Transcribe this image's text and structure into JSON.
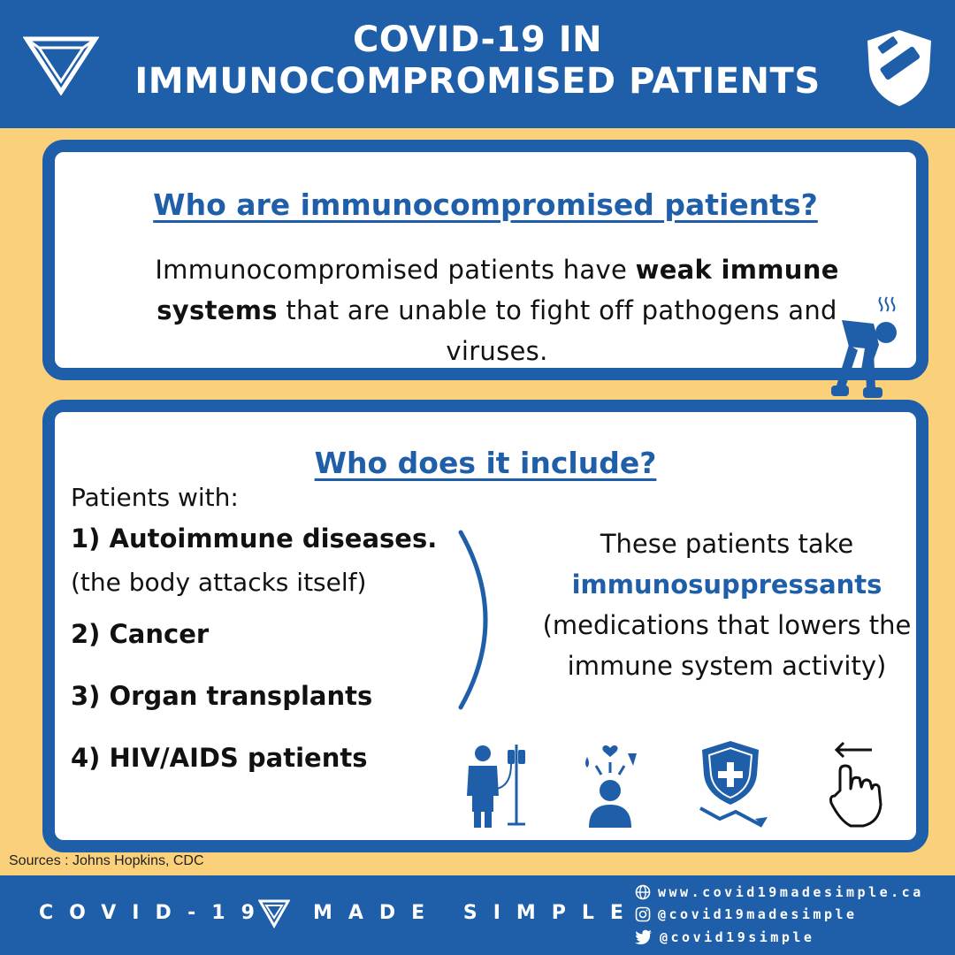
{
  "header": {
    "title_line1": "COVID-19 IN",
    "title_line2": "IMMUNOCOMPROMISED PATIENTS",
    "logo_left_icon": "triangle-logo-icon",
    "logo_right_icon": "shield-logo-icon"
  },
  "card1": {
    "heading": "Who are immunocompromised patients?",
    "body_part1": "Immunocompromised patients have ",
    "body_bold": "weak immune systems",
    "body_part2": " that are unable to fight off pathogens and viruses.",
    "illustration": "sick-person-icon"
  },
  "card2": {
    "heading": "Who does it include?",
    "intro": "Patients with:",
    "conditions": [
      {
        "label": "1) Autoimmune diseases.",
        "note": "(the body attacks itself)"
      },
      {
        "label": "2) Cancer"
      },
      {
        "label": "3) Organ transplants"
      },
      {
        "label": "4) HIV/AIDS patients"
      }
    ],
    "right_line1": "These patients take",
    "right_highlight": "immunosuppressants",
    "right_line2": "(medications that lowers the immune system activity)",
    "icons": [
      "patient-iv-icon",
      "mental-stress-icon",
      "shield-down-icon",
      "swipe-left-icon"
    ]
  },
  "sources": "Sources : Johns Hopkins, CDC",
  "footer": {
    "brand_a": "COVID-19",
    "brand_b": "MADE SIMPLE",
    "website": "www.covid19madesimple.ca",
    "instagram": "@covid19madesimple",
    "twitter": "@covid19simple"
  },
  "colors": {
    "primary_blue": "#1F5EA8",
    "background_yellow": "#FBD07A",
    "card_white": "#FFFFFF"
  }
}
